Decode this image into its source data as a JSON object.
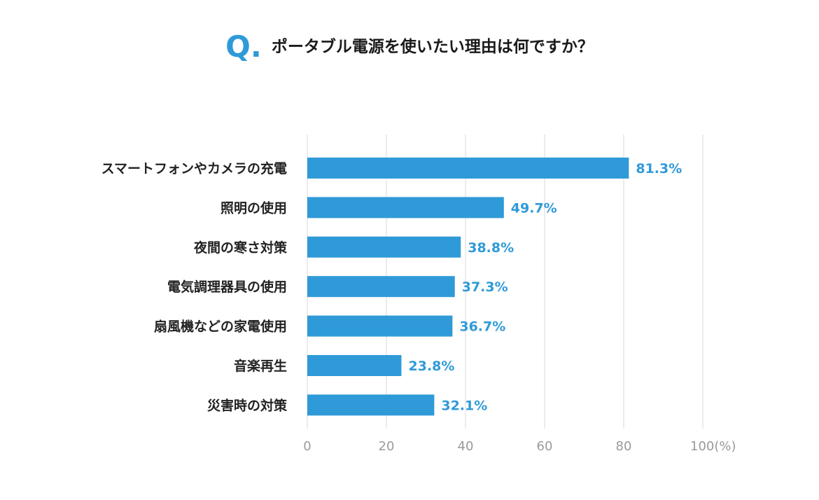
{
  "title": {
    "q_mark": "Q.",
    "text": "ポータブル電源を使いたい理由は何ですか？"
  },
  "colors": {
    "accent": "#2f9ad8",
    "label_text": "#222222",
    "tick_text": "#9a9a9a",
    "grid": "#e6e6e6"
  },
  "chart_data": {
    "type": "bar",
    "orientation": "horizontal",
    "categories": [
      "スマートフォンやカメラの充電",
      "照明の使用",
      "夜間の寒さ対策",
      "電気調理器具の使用",
      "扇風機などの家電使用",
      "音楽再生",
      "災害時の対策"
    ],
    "values": [
      81.3,
      49.7,
      38.8,
      37.3,
      36.7,
      23.8,
      32.1
    ],
    "value_labels": [
      "81.3%",
      "49.7%",
      "38.8%",
      "37.3%",
      "36.7%",
      "23.8%",
      "32.1%"
    ],
    "xlim": [
      0,
      100
    ],
    "xticks": [
      0,
      20,
      40,
      60,
      80,
      100
    ],
    "xtick_labels": [
      "0",
      "20",
      "40",
      "60",
      "80",
      "100(%)"
    ],
    "grid": true
  }
}
